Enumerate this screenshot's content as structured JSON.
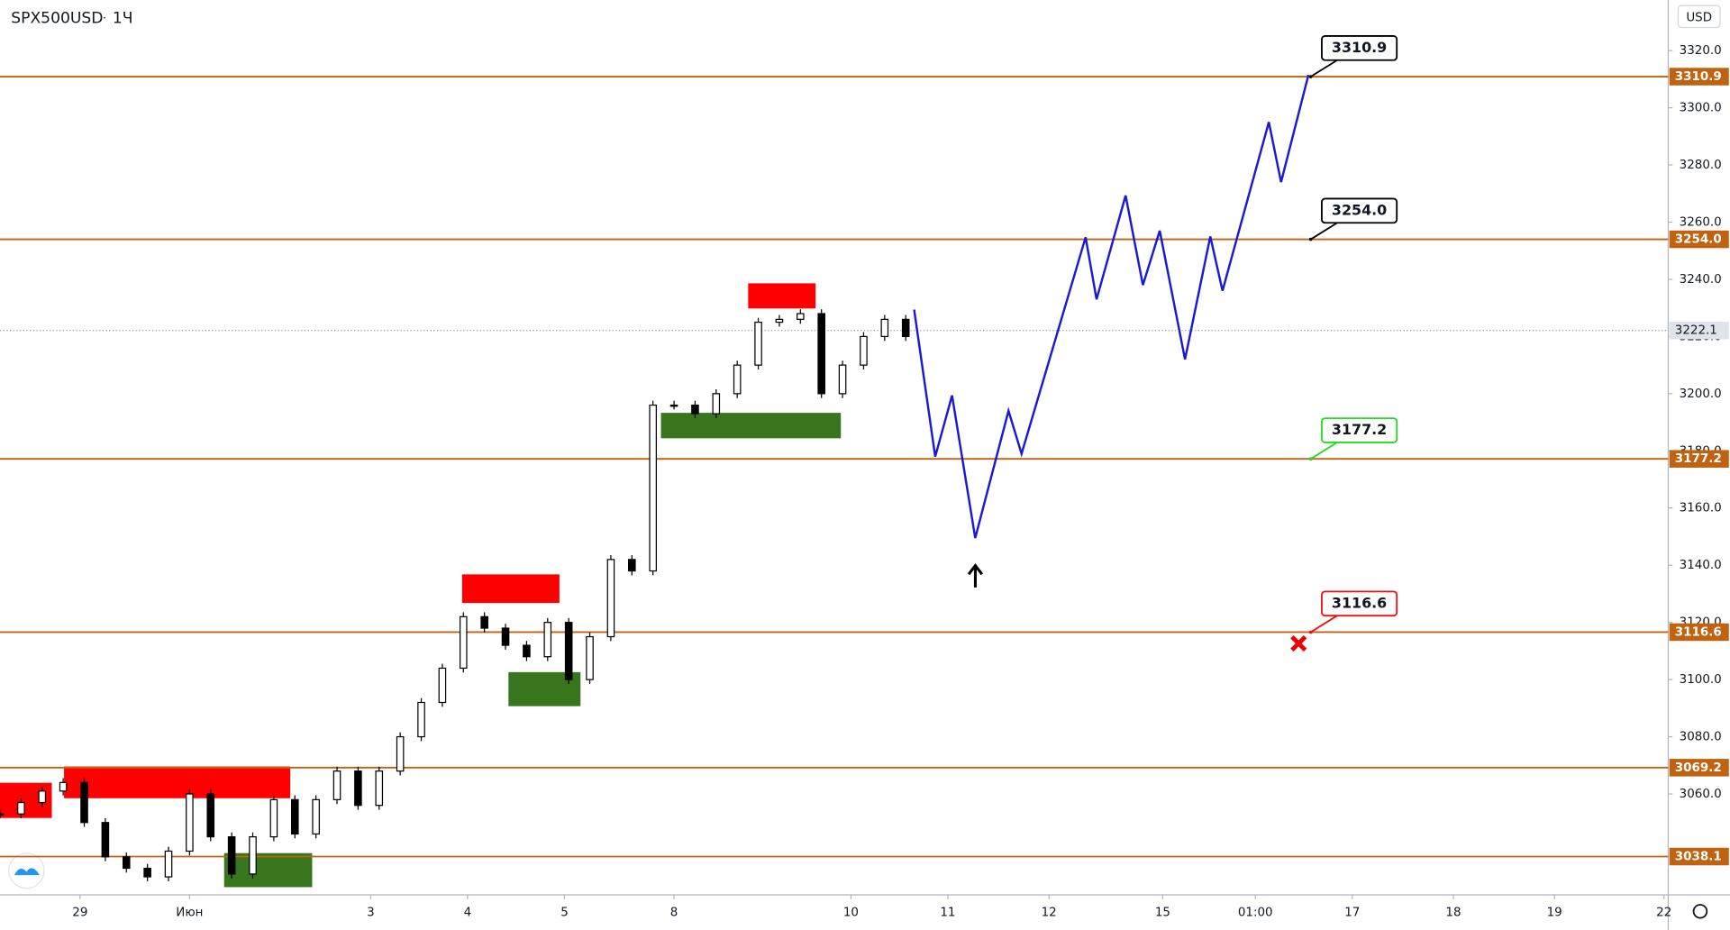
{
  "chart_data": {
    "type": "candlestick",
    "title": "SPX500USD",
    "interval": "1Ч",
    "currency": "USD",
    "xlim": [
      0,
      396
    ],
    "ylim": [
      3024.7,
      3337.7
    ],
    "xticks": [
      {
        "value": 19,
        "label": "29"
      },
      {
        "value": 45,
        "label": "Июн"
      },
      {
        "value": 88,
        "label": "3"
      },
      {
        "value": 111,
        "label": "4"
      },
      {
        "value": 134,
        "label": "5"
      },
      {
        "value": 160,
        "label": "8"
      },
      {
        "value": 202,
        "label": "10"
      },
      {
        "value": 225,
        "label": "11"
      },
      {
        "value": 249,
        "label": "12"
      },
      {
        "value": 276,
        "label": "15"
      },
      {
        "value": 298,
        "label": "01:00"
      },
      {
        "value": 321,
        "label": "17"
      },
      {
        "value": 345,
        "label": "18"
      },
      {
        "value": 369,
        "label": "19"
      },
      {
        "value": 395,
        "label": "22"
      }
    ],
    "yticks": [
      {
        "value": 3060,
        "label": "3060.0"
      },
      {
        "value": 3080,
        "label": "3080.0"
      },
      {
        "value": 3100,
        "label": "3100.0"
      },
      {
        "value": 3120,
        "label": "3120.0"
      },
      {
        "value": 3140,
        "label": "3140.0"
      },
      {
        "value": 3160,
        "label": "3160.0"
      },
      {
        "value": 3180,
        "label": "3180.0"
      },
      {
        "value": 3200,
        "label": "3200.0"
      },
      {
        "value": 3220,
        "label": "3220.0"
      },
      {
        "value": 3240,
        "label": "3240.0"
      },
      {
        "value": 3260,
        "label": "3260.0"
      },
      {
        "value": 3280,
        "label": "3280.0"
      },
      {
        "value": 3300,
        "label": "3300.0"
      },
      {
        "value": 3320,
        "label": "3320.0"
      }
    ],
    "price": {
      "x": [
        0,
        5,
        10,
        15,
        20,
        25,
        30,
        35,
        40,
        45,
        50,
        55,
        60,
        65,
        70,
        75,
        80,
        85,
        90,
        95,
        100,
        105,
        110,
        115,
        120,
        125,
        130,
        135,
        140,
        145,
        150,
        155,
        160,
        165,
        170,
        175,
        180,
        185,
        190,
        195,
        200,
        205,
        210,
        215
      ],
      "values": [
        3053,
        3057,
        3061,
        3064,
        3050,
        3038,
        3034,
        3031,
        3040,
        3060,
        3045,
        3032,
        3045,
        3058,
        3046,
        3058,
        3068,
        3056,
        3068,
        3080,
        3092,
        3104,
        3122,
        3118,
        3112,
        3108,
        3120,
        3100,
        3115,
        3142,
        3138,
        3196,
        3196,
        3193,
        3200,
        3210,
        3225,
        3226,
        3228,
        3200,
        3210,
        3220,
        3226,
        3220
      ]
    },
    "projection": {
      "color": "#1a1ad6",
      "x": [
        217,
        222,
        226,
        231.5,
        239.4,
        242.5,
        257.7,
        260.3,
        267.2,
        271.3,
        275.3,
        281.3,
        287.3,
        290.2,
        301.2,
        304.1,
        310.6
      ],
      "values": [
        3229.4,
        3178,
        3199.4,
        3149.5,
        3194,
        3179,
        3254.7,
        3233,
        3269.3,
        3238,
        3257,
        3212,
        3255,
        3236,
        3295,
        3274,
        3311.5
      ]
    },
    "current": {
      "value": 3222.1,
      "label": "3222.1"
    },
    "levels": [
      {
        "value": 3310.9,
        "label": "3310.9",
        "callout_color": "#000000"
      },
      {
        "value": 3254.0,
        "label": "3254.0",
        "callout_color": "#000000"
      },
      {
        "value": 3177.2,
        "label": "3177.2",
        "callout_color": "#22dd22"
      },
      {
        "value": 3116.6,
        "label": "3116.6",
        "callout_color": "#ee1111"
      },
      {
        "value": 3069.2,
        "label": "3069.2"
      },
      {
        "value": 3038.1,
        "label": "3038.1"
      }
    ],
    "level_color": "#c0620f",
    "zones": [
      {
        "x": [
          0,
          12.3
        ],
        "y": [
          3051.6,
          3063.9
        ],
        "color": "#ff0000"
      },
      {
        "x": [
          15.2,
          68.9
        ],
        "y": [
          3058.5,
          3069.6
        ],
        "color": "#ff0000"
      },
      {
        "x": [
          109.7,
          132.8
        ],
        "y": [
          3126.8,
          3136.8
        ],
        "color": "#ff0000"
      },
      {
        "x": [
          177.6,
          193.6
        ],
        "y": [
          3229.8,
          3238.6
        ],
        "color": "#ff0000"
      },
      {
        "x": [
          53.2,
          74.1
        ],
        "y": [
          3027.4,
          3039.3
        ],
        "color": "#38761d"
      },
      {
        "x": [
          120.7,
          137.8
        ],
        "y": [
          3090.7,
          3102.6
        ],
        "color": "#38761d"
      },
      {
        "x": [
          156.9,
          199.6
        ],
        "y": [
          3184.4,
          3193.3
        ],
        "color": "#38761d"
      }
    ]
  }
}
